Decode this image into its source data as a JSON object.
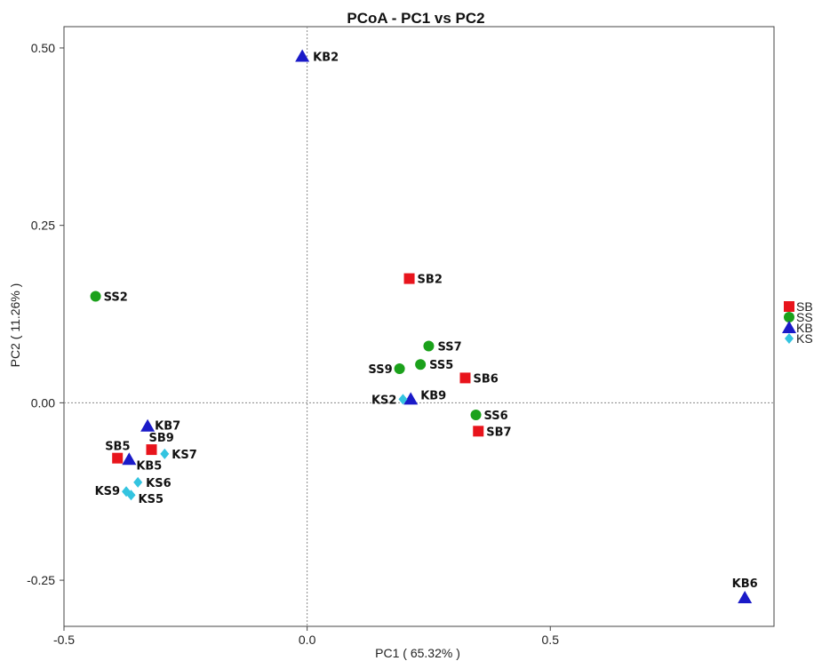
{
  "chart_data": {
    "type": "scatter",
    "title": "PCoA - PC1 vs PC2",
    "xlabel": "PC1 ( 65.32% )",
    "ylabel": "PC2 ( 11.26% )",
    "xlim": [
      -0.5,
      0.96
    ],
    "ylim": [
      -0.315,
      0.53
    ],
    "x_ticks": [
      {
        "value": -0.5,
        "label": "-0.5"
      },
      {
        "value": 0.0,
        "label": "0.0"
      },
      {
        "value": 0.5,
        "label": "0.5"
      }
    ],
    "y_ticks": [
      {
        "value": 0.5,
        "label": "0.50"
      },
      {
        "value": 0.25,
        "label": "0.25"
      },
      {
        "value": 0.0,
        "label": "0.00"
      },
      {
        "value": -0.25,
        "label": "-0.25"
      }
    ],
    "reference_lines": {
      "x": 0,
      "y": 0
    },
    "grid": false,
    "legend_position": "right",
    "series": [
      {
        "name": "SB",
        "marker": "square",
        "color": "#e8141c",
        "points": [
          {
            "label": "SB2",
            "x": 0.21,
            "y": 0.175
          },
          {
            "label": "SB6",
            "x": 0.325,
            "y": 0.035
          },
          {
            "label": "SB7",
            "x": 0.352,
            "y": -0.04
          },
          {
            "label": "SB5",
            "x": -0.39,
            "y": -0.078
          },
          {
            "label": "SB9",
            "x": -0.32,
            "y": -0.066
          }
        ]
      },
      {
        "name": "SS",
        "marker": "circle",
        "color": "#1ba11b",
        "points": [
          {
            "label": "SS2",
            "x": -0.435,
            "y": 0.15
          },
          {
            "label": "SS7",
            "x": 0.25,
            "y": 0.08
          },
          {
            "label": "SS5",
            "x": 0.233,
            "y": 0.054
          },
          {
            "label": "SS9",
            "x": 0.19,
            "y": 0.048
          },
          {
            "label": "SS6",
            "x": 0.347,
            "y": -0.017
          }
        ]
      },
      {
        "name": "KB",
        "marker": "triangle",
        "color": "#1a1ac8",
        "points": [
          {
            "label": "KB2",
            "x": -0.01,
            "y": 0.488
          },
          {
            "label": "KB9",
            "x": 0.213,
            "y": 0.005
          },
          {
            "label": "KB7",
            "x": -0.328,
            "y": -0.033
          },
          {
            "label": "KB5",
            "x": -0.366,
            "y": -0.08
          },
          {
            "label": "KB6",
            "x": 0.9,
            "y": -0.275
          }
        ]
      },
      {
        "name": "KS",
        "marker": "diamond",
        "color": "#33c4e0",
        "points": [
          {
            "label": "KS2",
            "x": 0.197,
            "y": 0.005
          },
          {
            "label": "KS7",
            "x": -0.293,
            "y": -0.072
          },
          {
            "label": "KS6",
            "x": -0.348,
            "y": -0.112
          },
          {
            "label": "KS9",
            "x": -0.372,
            "y": -0.125
          },
          {
            "label": "KS5",
            "x": -0.362,
            "y": -0.13
          }
        ]
      }
    ]
  }
}
